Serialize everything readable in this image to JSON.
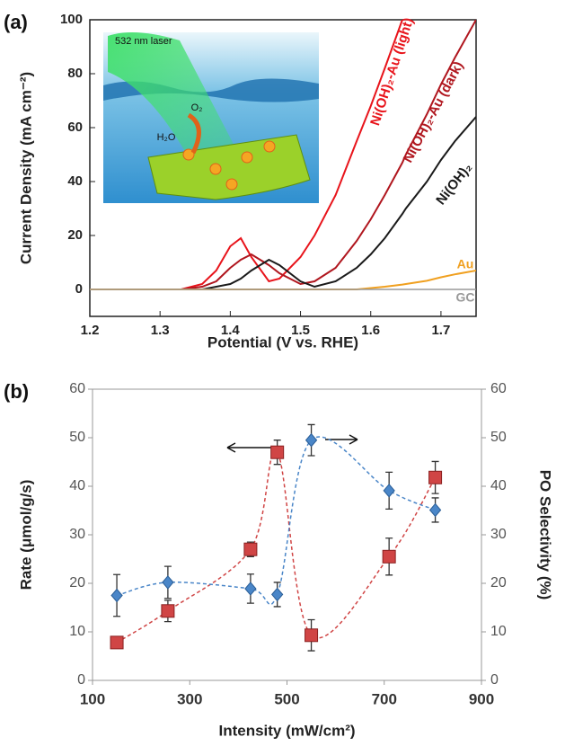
{
  "chart_data": [
    {
      "type": "line",
      "panel_label": "(a)",
      "xlabel": "Potential (V vs. RHE)",
      "ylabel": "Current Density (mA cm⁻²)",
      "inset_labels": [
        "532 nm laser",
        "O₂",
        "H₂O"
      ],
      "x": [
        1.2,
        1.33,
        1.36,
        1.38,
        1.4,
        1.415,
        1.43,
        1.455,
        1.47,
        1.5,
        1.52,
        1.55,
        1.58,
        1.6,
        1.62,
        1.645,
        1.65,
        1.68,
        1.7,
        1.72,
        1.75
      ],
      "series": [
        {
          "name": "Ni(OH)₂-Au (light)",
          "color": "#e8141b",
          "values": [
            0,
            0,
            2,
            7,
            16,
            19,
            12,
            3,
            4,
            12,
            20,
            35,
            55,
            68,
            82,
            100,
            null,
            null,
            null,
            null,
            null
          ]
        },
        {
          "name": "Ni(OH)₂-Au (dark)",
          "color": "#b0161e",
          "values": [
            0,
            0,
            1,
            3,
            8,
            11,
            13,
            9,
            6,
            2,
            3,
            8,
            18,
            26,
            35,
            47,
            50,
            65,
            76,
            86,
            100
          ]
        },
        {
          "name": "Ni(OH)₂",
          "color": "#1a1a1a",
          "values": [
            0,
            0,
            0,
            1,
            2,
            4,
            7,
            11,
            9,
            3,
            1,
            3,
            8,
            13,
            19,
            28,
            30,
            40,
            48,
            55,
            64
          ]
        },
        {
          "name": "Au",
          "color": "#f0a020",
          "values": [
            0,
            0,
            0,
            0,
            0,
            0,
            0,
            0,
            0,
            0,
            0,
            0,
            0,
            0.5,
            1,
            1.8,
            2,
            3.2,
            4.5,
            5.6,
            7
          ]
        },
        {
          "name": "GC",
          "color": "#999999",
          "values": [
            0,
            0,
            0,
            0,
            0,
            0,
            0,
            0,
            0,
            0,
            0,
            0,
            0,
            0,
            0,
            0,
            0,
            0,
            0,
            0,
            0
          ]
        }
      ],
      "xlim": [
        1.2,
        1.75
      ],
      "xticks": [
        1.2,
        1.3,
        1.4,
        1.5,
        1.6,
        1.7
      ],
      "ylim": [
        -10,
        100
      ],
      "yticks": [
        0,
        20,
        40,
        60,
        80,
        100
      ]
    },
    {
      "type": "scatter",
      "panel_label": "(b)",
      "line_style": "dashed",
      "xlabel": "Intensity (mW/cm²)",
      "ylabel": "Rate (μmol/g/s)",
      "y2label": "PO Selectivity (%)",
      "x": [
        150,
        255,
        425,
        480,
        550,
        710,
        805
      ],
      "series": [
        {
          "color": "#d04545",
          "marker": "square",
          "values": [
            7.8,
            14.3,
            27,
            47,
            9.3,
            25.5,
            41.8
          ],
          "errors": [
            0.5,
            2.2,
            1.5,
            2.5,
            3.2,
            3.8,
            3.3
          ]
        },
        {
          "color": "#4a86c8",
          "marker": "diamond",
          "axis": "y2",
          "values": [
            17.5,
            20.2,
            18.9,
            17.7,
            49.5,
            39.1,
            35.1
          ],
          "errors": [
            4.3,
            3.3,
            3,
            2.5,
            3.2,
            3.8,
            2.5
          ]
        }
      ],
      "xlim": [
        100,
        900
      ],
      "xticks": [
        100,
        300,
        500,
        700,
        900
      ],
      "ylim": [
        0,
        60
      ],
      "yticks": [
        0,
        10,
        20,
        30,
        40,
        50,
        60
      ],
      "y2lim": [
        0,
        60
      ],
      "y2ticks": [
        0,
        10,
        20,
        30,
        40,
        50,
        60
      ]
    }
  ]
}
